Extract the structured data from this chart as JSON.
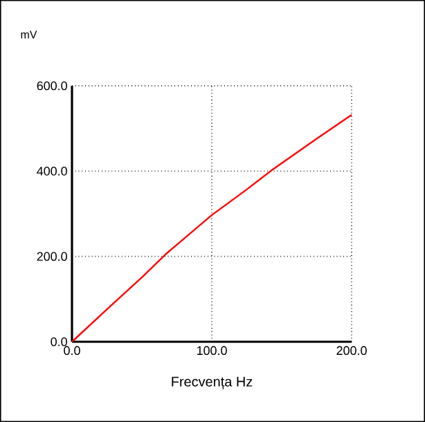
{
  "chart_data": {
    "type": "line",
    "xlabel": "Frecvența  Hz",
    "ylabel": "mV",
    "x": [
      0,
      25,
      50,
      68,
      100,
      125,
      142,
      175,
      200
    ],
    "series": [
      {
        "color": "#ff0000",
        "values": [
          0,
          76,
          151,
          208,
          297,
          357,
          400,
          476,
          532
        ]
      }
    ],
    "xlim": [
      0,
      200
    ],
    "ylim": [
      0,
      600
    ],
    "xticks": [
      {
        "value": 0,
        "label": "0.0"
      },
      {
        "value": 100,
        "label": "100.0"
      },
      {
        "value": 200,
        "label": "200.0"
      }
    ],
    "yticks": [
      {
        "value": 0,
        "label": "0.0"
      },
      {
        "value": 200,
        "label": "200.0"
      },
      {
        "value": 400,
        "label": "400.0"
      },
      {
        "value": 600,
        "label": "600.0"
      }
    ],
    "grid": true,
    "line_style": "solid",
    "marker": "none"
  }
}
